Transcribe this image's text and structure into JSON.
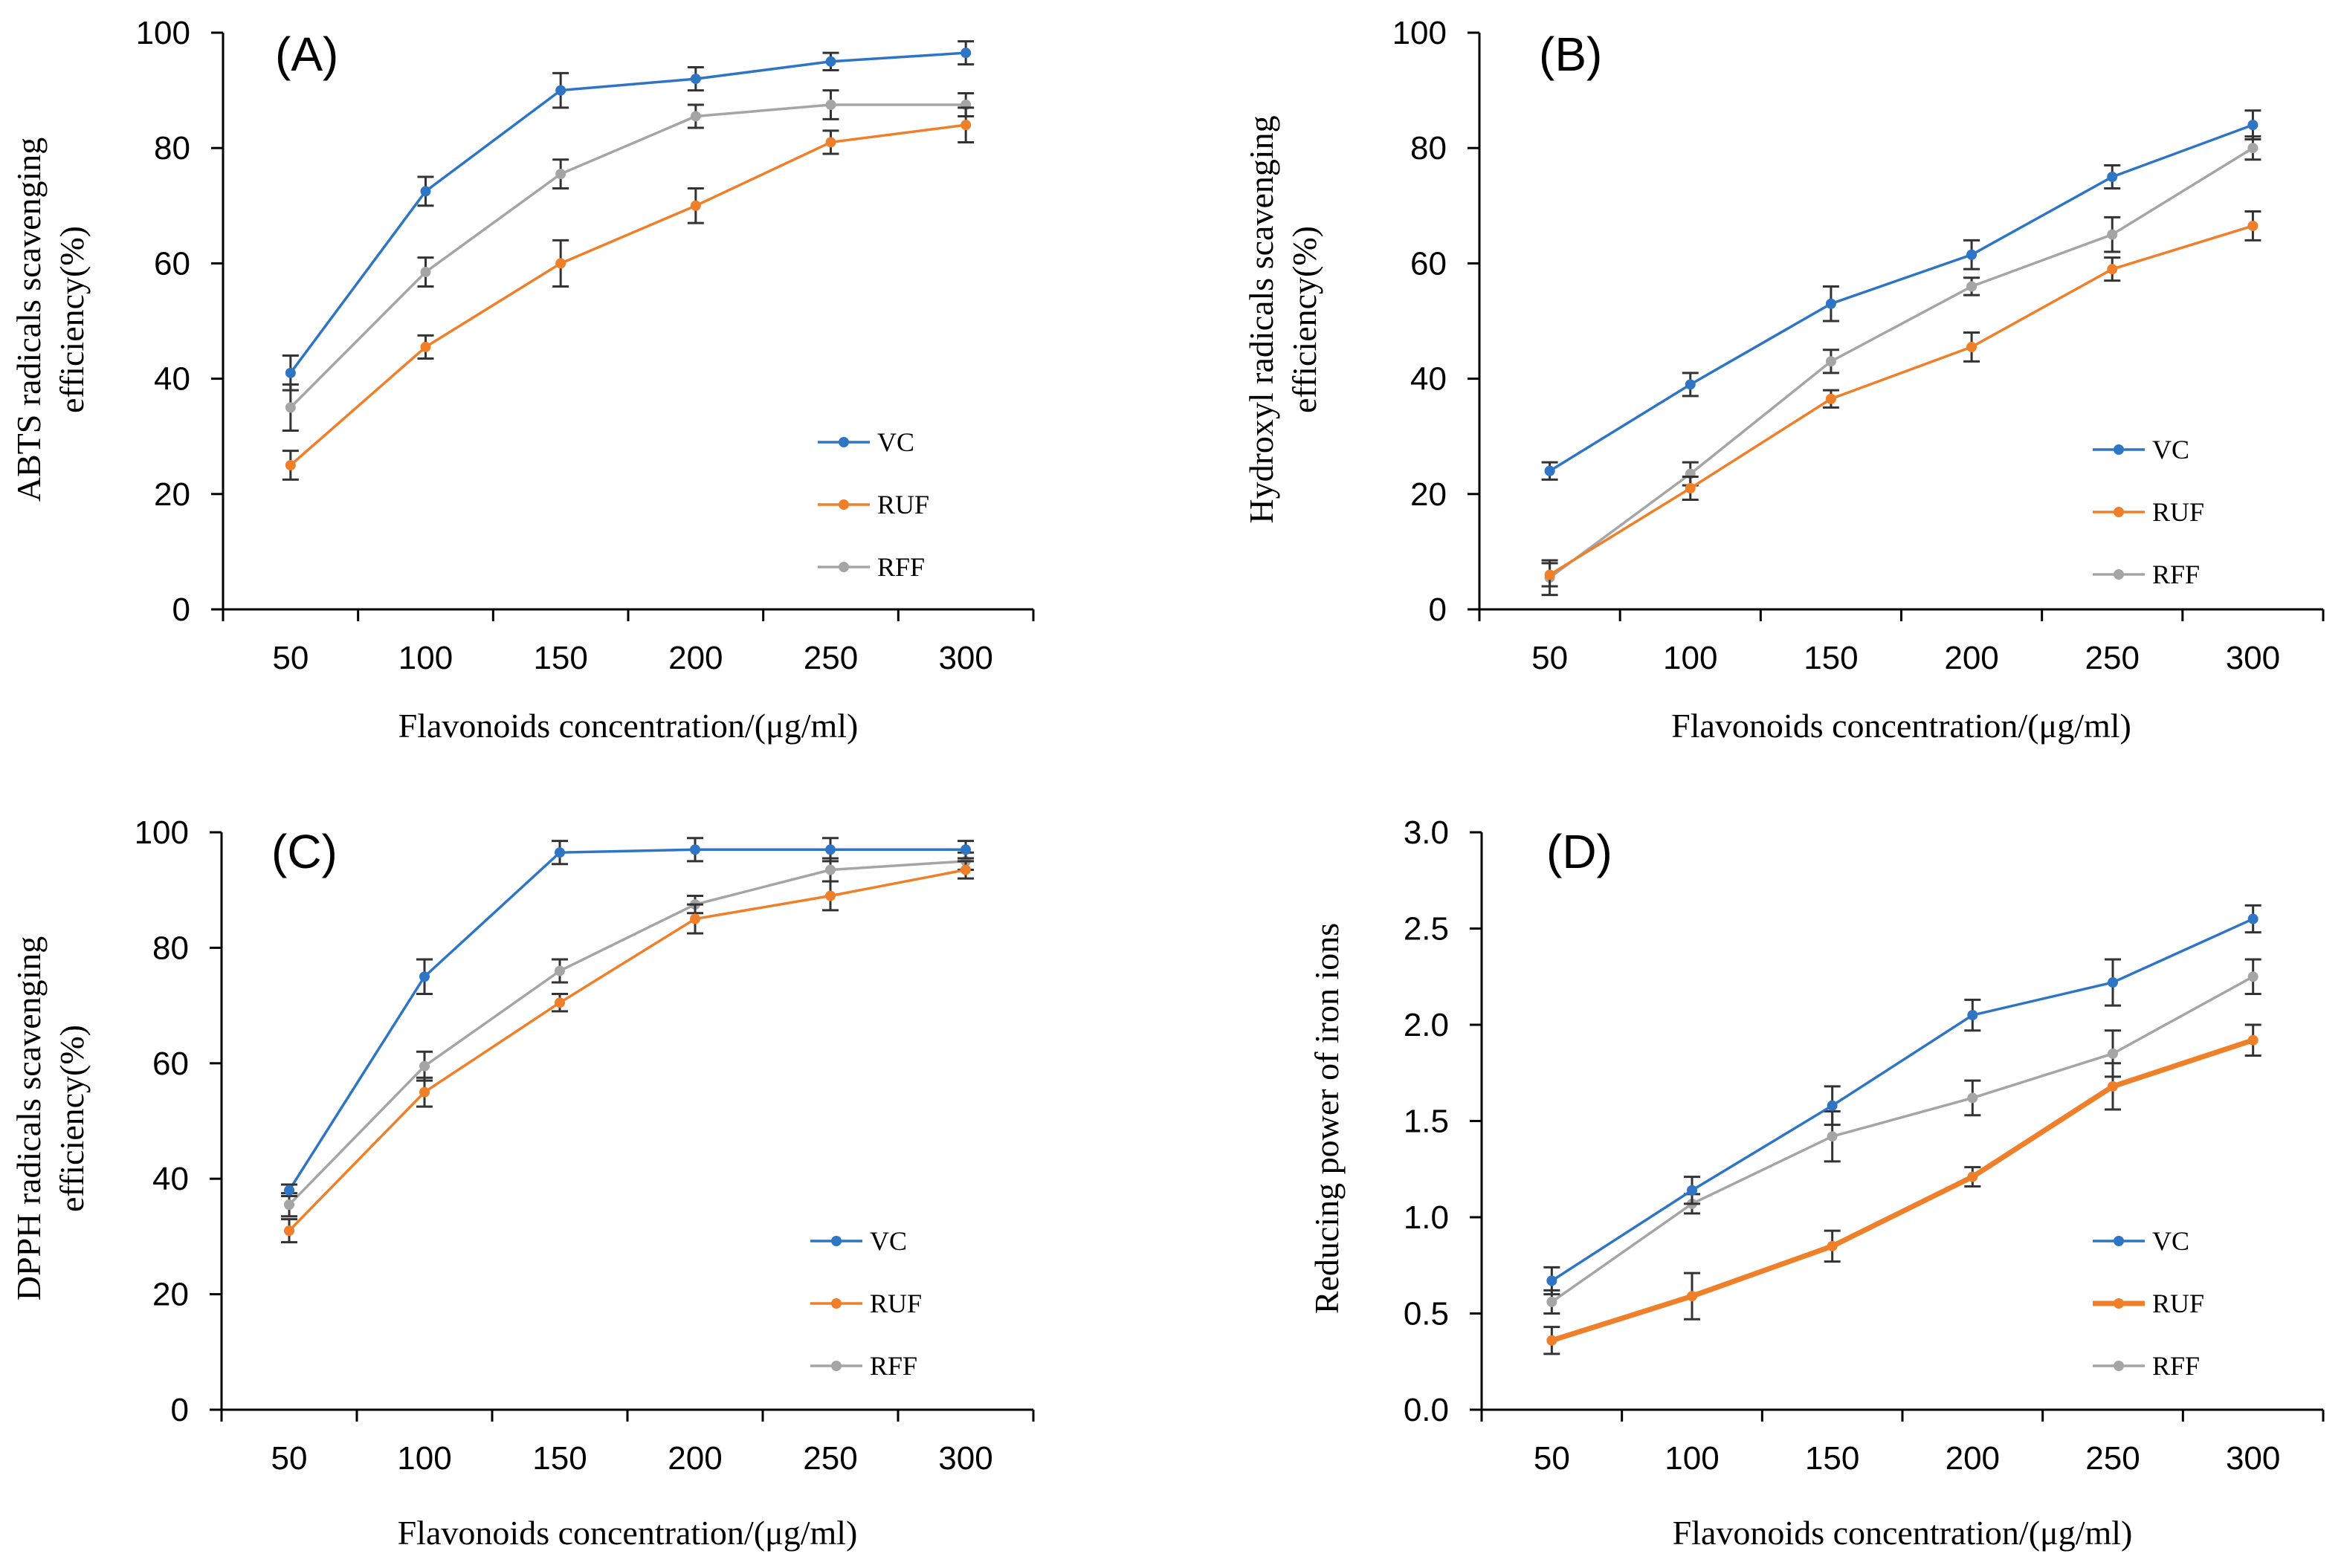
{
  "colors": {
    "VC": "#2e75c6",
    "RUF": "#f07f2a",
    "RFF": "#a5a5a5"
  },
  "chart_data": [
    {
      "type": "line",
      "panel": "(A)",
      "title": "",
      "xlabel": "Flavonoids  concentration/(μg/ml)",
      "ylabel_lines": [
        "ABTS radicals  scavenging",
        "efficiency(%)"
      ],
      "categories": [
        "50",
        "100",
        "150",
        "200",
        "250",
        "300"
      ],
      "ylim": [
        0,
        100
      ],
      "yticks": [
        "0",
        "20",
        "40",
        "60",
        "80",
        "100"
      ],
      "legend": "bottom-right",
      "series": [
        {
          "name": "VC",
          "values": [
            41,
            72.5,
            90,
            92,
            95,
            96.5
          ],
          "errors": [
            3,
            2.5,
            3,
            2,
            1.5,
            2
          ]
        },
        {
          "name": "RUF",
          "values": [
            25,
            45.5,
            60,
            70,
            81,
            84
          ],
          "errors": [
            2.5,
            2,
            4,
            3,
            2,
            3
          ]
        },
        {
          "name": "RFF",
          "values": [
            35,
            58.5,
            75.5,
            85.5,
            87.5,
            87.5
          ],
          "errors": [
            4,
            2.5,
            2.5,
            2,
            2.5,
            2
          ]
        }
      ]
    },
    {
      "type": "line",
      "panel": "(B)",
      "title": "",
      "xlabel": "Flavonoids  concentration/(μg/ml)",
      "ylabel_lines": [
        "Hydroxyl  radicals  scavenging",
        "efficiency(%)"
      ],
      "categories": [
        "50",
        "100",
        "150",
        "200",
        "250",
        "300"
      ],
      "ylim": [
        0,
        100
      ],
      "yticks": [
        "0",
        "20",
        "40",
        "60",
        "80",
        "100"
      ],
      "legend": "bottom-right",
      "series": [
        {
          "name": "VC",
          "values": [
            24,
            39,
            53,
            61.5,
            75,
            84
          ],
          "errors": [
            1.5,
            2,
            3,
            2.5,
            2,
            2.5
          ]
        },
        {
          "name": "RUF",
          "values": [
            6,
            21,
            36.5,
            45.5,
            59,
            66.5
          ],
          "errors": [
            2,
            2,
            1.5,
            2.5,
            2,
            2.5
          ]
        },
        {
          "name": "RFF",
          "values": [
            5.5,
            23.5,
            43,
            56,
            65,
            80
          ],
          "errors": [
            3,
            2,
            2,
            1.5,
            3,
            2
          ]
        }
      ]
    },
    {
      "type": "line",
      "panel": "(C)",
      "title": "",
      "xlabel": "Flavonoids  concentration/(μg/ml)",
      "ylabel_lines": [
        "DPPH radicals  scavenging",
        "efficiency(%)"
      ],
      "categories": [
        "50",
        "100",
        "150",
        "200",
        "250",
        "300"
      ],
      "ylim": [
        0,
        100
      ],
      "yticks": [
        "0",
        "20",
        "40",
        "60",
        "80",
        "100"
      ],
      "legend": "bottom-right",
      "series": [
        {
          "name": "VC",
          "values": [
            38,
            75,
            96.5,
            97,
            97,
            97
          ],
          "errors": [
            1,
            3,
            2,
            2,
            2,
            1.5
          ]
        },
        {
          "name": "RUF",
          "values": [
            31,
            55,
            70.5,
            85,
            89,
            93.5
          ],
          "errors": [
            2,
            2.5,
            1.5,
            2.5,
            2.5,
            1.5
          ]
        },
        {
          "name": "RFF",
          "values": [
            35.5,
            59.5,
            76,
            87.5,
            93.5,
            95
          ],
          "errors": [
            2,
            2.5,
            2,
            1.5,
            2,
            1.5
          ]
        }
      ]
    },
    {
      "type": "line",
      "panel": "(D)",
      "title": "",
      "xlabel": "Flavonoids  concentration/(μg/ml)",
      "ylabel_lines": [
        "Reducing  power  of  iron  ions"
      ],
      "categories": [
        "50",
        "100",
        "150",
        "200",
        "250",
        "300"
      ],
      "ylim": [
        0,
        3
      ],
      "yticks": [
        "0.0",
        "0.5",
        "1.0",
        "1.5",
        "2.0",
        "2.5",
        "3.0"
      ],
      "legend": "bottom-right",
      "series": [
        {
          "name": "VC",
          "values": [
            0.67,
            1.14,
            1.58,
            2.05,
            2.22,
            2.55
          ],
          "errors": [
            0.07,
            0.07,
            0.1,
            0.08,
            0.12,
            0.07
          ]
        },
        {
          "name": "RUF",
          "values": [
            0.36,
            0.59,
            0.85,
            1.21,
            1.68,
            1.92
          ],
          "errors": [
            0.07,
            0.12,
            0.08,
            0.05,
            0.12,
            0.08
          ],
          "thick": true
        },
        {
          "name": "RFF",
          "values": [
            0.56,
            1.07,
            1.42,
            1.62,
            1.85,
            2.25
          ],
          "errors": [
            0.06,
            0.05,
            0.13,
            0.09,
            0.12,
            0.09
          ]
        }
      ]
    }
  ]
}
